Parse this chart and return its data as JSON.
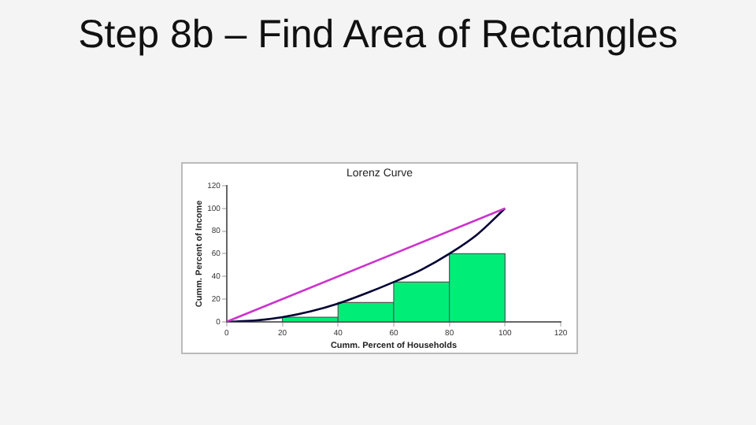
{
  "chart_data": {
    "type": "histogram",
    "title": "Step 8b – Find Area of Rectangles",
    "subtitle": "Lorenz Curve",
    "xlabel": "Cumm. Percent of Households",
    "ylabel": "Cumm. Percent of Income",
    "bins": [
      20,
      40,
      60,
      80,
      100
    ],
    "values": [
      4,
      17,
      35,
      60
    ],
    "color": "#00ee77",
    "series": [
      {
        "type": "line",
        "x": [
          0,
          100
        ],
        "values": [
          0,
          100
        ],
        "color": "#cc33cc"
      },
      {
        "type": "line",
        "x": [
          0,
          10,
          20,
          30,
          40,
          50,
          60,
          70,
          80,
          90,
          100
        ],
        "values": [
          0,
          1,
          4,
          9,
          16,
          25,
          35,
          46,
          60,
          77,
          100
        ],
        "color": "#000033"
      }
    ],
    "xlim": [
      0,
      120
    ],
    "xticks": [
      0,
      20,
      40,
      60,
      80,
      100,
      120
    ],
    "ylim": [
      0,
      120
    ],
    "yticks": [
      0,
      20,
      40,
      60,
      80,
      100,
      120
    ],
    "grid": false,
    "legend": false,
    "marker": "none"
  }
}
